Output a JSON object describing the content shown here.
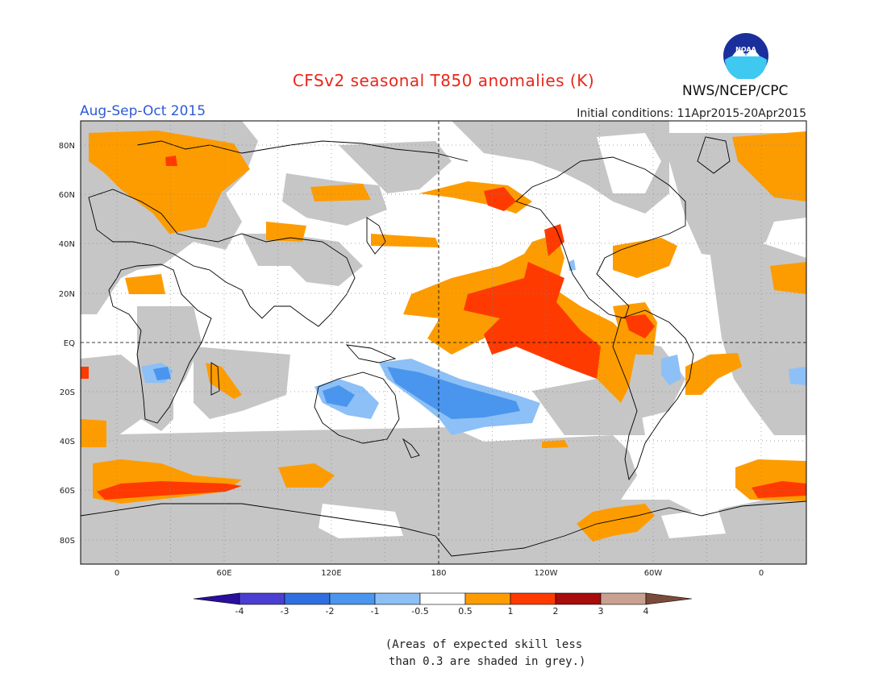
{
  "header": {
    "title": "CFSv2 seasonal T850 anomalies (K)",
    "period": "Aug-Sep-Oct 2015",
    "initial_conditions": "Initial conditions: 11Apr2015-20Apr2015",
    "agency": "NWS/NCEP/CPC",
    "logo_text": "NOAA"
  },
  "map": {
    "lat_labels": [
      "80N",
      "60N",
      "40N",
      "20N",
      "EQ",
      "20S",
      "40S",
      "60S",
      "80S"
    ],
    "lon_labels": [
      "0",
      "60E",
      "120E",
      "180",
      "120W",
      "60W",
      "0"
    ]
  },
  "colorbar": {
    "labels": [
      "-4",
      "-3",
      "-2",
      "-1",
      "-0.5",
      "0.5",
      "1",
      "2",
      "3",
      "4"
    ],
    "colors": [
      "#2a0f9e",
      "#4a3fd0",
      "#2f6fe0",
      "#4a95ee",
      "#8cc0f6",
      "#ffffff",
      "#fd9c00",
      "#ff3a00",
      "#a80c0c",
      "#c9a190",
      "#7a4a3a"
    ]
  },
  "footnote": {
    "line1": "(Areas of expected skill less",
    "line2": " than 0.3 are shaded in grey.)"
  },
  "colors": {
    "grey": "#c6c6c6",
    "orange": "#fd9c00",
    "red": "#ff3a00",
    "light_blue": "#8cc0f6",
    "mid_blue": "#4a95ee",
    "dark_blue": "#2f6fe0"
  }
}
